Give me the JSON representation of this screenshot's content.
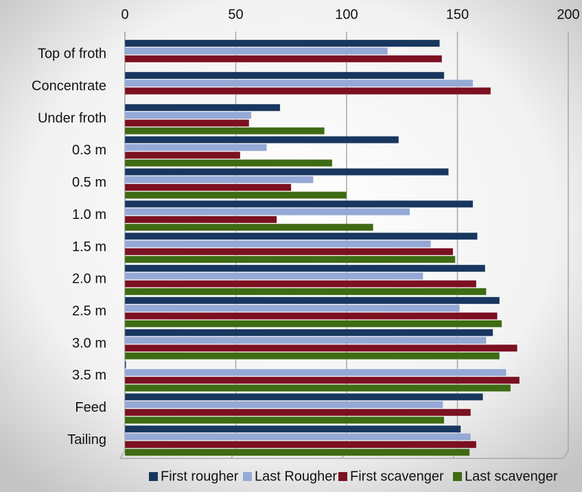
{
  "chart_data": {
    "type": "bar",
    "orientation": "horizontal",
    "categories": [
      "Top of froth",
      "Concentrate",
      "Under froth",
      "0.3 m",
      "0.5 m",
      "1.0 m",
      "1.5 m",
      "2.0 m",
      "2.5 m",
      "3.0 m",
      "3.5 m",
      "Feed",
      "Tailing"
    ],
    "series": [
      {
        "name": "First rougher",
        "color": "#17375e",
        "values": [
          142,
          144,
          70,
          123.5,
          146,
          157,
          159,
          162.5,
          169,
          166,
          0.5,
          161.5,
          151.5
        ]
      },
      {
        "name": "Last Rougher",
        "color": "#95a9d6",
        "values": [
          118.5,
          157,
          57,
          64,
          85,
          128.5,
          138,
          134.5,
          151,
          163,
          172,
          143.5,
          156
        ]
      },
      {
        "name": "First scavenger",
        "color": "#7b1020",
        "values": [
          143,
          165,
          56,
          52,
          75,
          68.5,
          148,
          158.5,
          168,
          177,
          178,
          156,
          158.5
        ]
      },
      {
        "name": "Last scavenger",
        "color": "#3e6b13",
        "values": [
          0,
          0,
          90,
          93.5,
          100,
          112,
          149,
          163,
          170,
          169,
          174,
          144,
          155.5
        ]
      }
    ],
    "xlim": [
      0,
      200
    ],
    "xticks": [
      0,
      50,
      100,
      150,
      200
    ],
    "grid": true,
    "legend": "bottom"
  }
}
